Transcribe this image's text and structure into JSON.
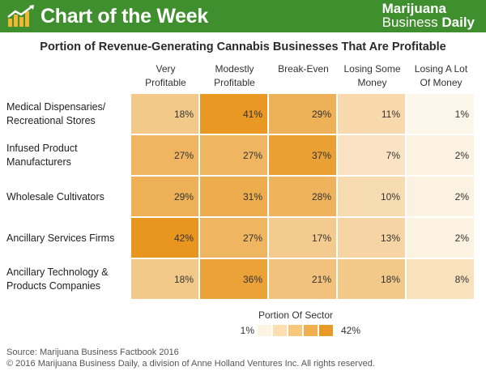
{
  "header": {
    "title": "Chart of the Week",
    "brand_line1": "Marijuana",
    "brand_line2a": "Business",
    "brand_line2b": "Daily",
    "color": "#3f8f2e"
  },
  "chart_data": {
    "type": "heatmap",
    "title": "Portion of Revenue-Generating Cannabis Businesses That Are Profitable",
    "columns": [
      [
        "Very",
        "Profitable"
      ],
      [
        "Modestly",
        "Profitable"
      ],
      [
        "Break-Even",
        ""
      ],
      [
        "Losing Some",
        "Money"
      ],
      [
        "Losing A Lot",
        "Of Money"
      ]
    ],
    "rows": [
      {
        "label": [
          "Medical Dispensaries/",
          "Recreational Stores"
        ],
        "values": [
          18,
          41,
          29,
          11,
          1
        ]
      },
      {
        "label": [
          "Infused Product",
          "Manufacturers"
        ],
        "values": [
          27,
          27,
          37,
          7,
          2
        ]
      },
      {
        "label": [
          "Wholesale Cultivators",
          ""
        ],
        "values": [
          29,
          31,
          28,
          10,
          2
        ]
      },
      {
        "label": [
          "Ancillary Services Firms",
          ""
        ],
        "values": [
          42,
          27,
          17,
          13,
          2
        ]
      },
      {
        "label": [
          "Ancillary Technology &",
          "Products Companies"
        ],
        "values": [
          18,
          36,
          21,
          18,
          8
        ]
      }
    ],
    "unit": "%",
    "legend": {
      "title": "Portion Of Sector",
      "min_label": "1%",
      "max_label": "42%",
      "min": 1,
      "max": 42,
      "colors": [
        "#fef3e1",
        "#fbdfb0",
        "#f6c87c",
        "#f0b04e",
        "#e89a27"
      ]
    }
  },
  "footer": {
    "source": "Source: Marijuana Business Factbook 2016",
    "copyright": "© 2016 Marijuana Business Daily, a division of Anne Holland Ventures Inc. All rights reserved."
  }
}
